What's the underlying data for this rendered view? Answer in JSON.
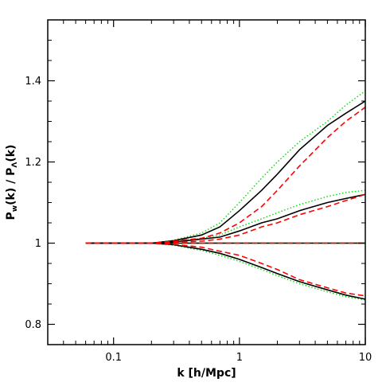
{
  "chart_data": {
    "type": "line",
    "title": "",
    "xlabel": "k [h/Mpc]",
    "ylabel": {
      "main": "P",
      "sub1": "w",
      "mid": "(k) / P",
      "sub2": "Λ",
      "end": "(k)"
    },
    "xscale": "log",
    "xlim": [
      0.03,
      10
    ],
    "ylim": [
      0.75,
      1.55
    ],
    "xticks": [
      {
        "value": 0.1,
        "label": "0.1"
      },
      {
        "value": 1,
        "label": "1"
      },
      {
        "value": 10,
        "label": "10"
      }
    ],
    "yticks": [
      {
        "value": 0.8,
        "label": "0.8"
      },
      {
        "value": 1,
        "label": "1"
      },
      {
        "value": 1.2,
        "label": "1.2"
      },
      {
        "value": 1.4,
        "label": "1.4"
      }
    ],
    "grid": false,
    "legend": "none",
    "colors": {
      "solid": "#000000",
      "dashed": "#ff0000",
      "dotted": "#00dd00"
    },
    "x": [
      0.06,
      0.1,
      0.2,
      0.3,
      0.5,
      0.7,
      1,
      1.5,
      2,
      3,
      5,
      7,
      10
    ],
    "series": [
      {
        "style": "solid",
        "values": [
          1.0,
          1.0,
          1.0,
          1.006,
          1.02,
          1.04,
          1.08,
          1.13,
          1.17,
          1.23,
          1.29,
          1.32,
          1.35
        ]
      },
      {
        "style": "dashed",
        "values": [
          1.0,
          1.0,
          1.0,
          1.005,
          1.012,
          1.025,
          1.05,
          1.09,
          1.13,
          1.19,
          1.26,
          1.3,
          1.335
        ]
      },
      {
        "style": "dotted",
        "values": [
          1.0,
          1.0,
          1.0,
          1.007,
          1.025,
          1.05,
          1.1,
          1.16,
          1.2,
          1.25,
          1.3,
          1.34,
          1.375
        ]
      },
      {
        "style": "solid",
        "values": [
          1.0,
          1.0,
          1.0,
          1.003,
          1.01,
          1.015,
          1.03,
          1.05,
          1.06,
          1.08,
          1.1,
          1.11,
          1.12
        ]
      },
      {
        "style": "dashed",
        "values": [
          1.0,
          1.0,
          1.0,
          1.002,
          1.005,
          1.01,
          1.02,
          1.04,
          1.05,
          1.07,
          1.09,
          1.105,
          1.12
        ]
      },
      {
        "style": "dotted",
        "values": [
          1.0,
          1.0,
          1.0,
          1.004,
          1.012,
          1.02,
          1.04,
          1.06,
          1.075,
          1.095,
          1.115,
          1.125,
          1.13
        ]
      },
      {
        "style": "solid",
        "values": [
          1.0,
          1.0,
          1.0,
          1.0,
          1.0,
          1.0,
          1.0,
          1.0,
          1.0,
          1.0,
          1.0,
          1.0,
          1.0
        ]
      },
      {
        "style": "dashed",
        "values": [
          1.0,
          1.0,
          1.0,
          1.0,
          1.0,
          1.0,
          1.0,
          1.0,
          1.0,
          1.0,
          1.0,
          1.0,
          1.0
        ]
      },
      {
        "style": "dotted",
        "values": [
          1.0,
          1.0,
          1.0,
          1.0,
          1.0,
          1.0,
          1.0,
          1.0,
          1.0,
          1.0,
          1.0,
          1.0,
          1.0
        ]
      },
      {
        "style": "solid",
        "values": [
          1.0,
          1.0,
          1.0,
          0.996,
          0.985,
          0.975,
          0.96,
          0.94,
          0.925,
          0.905,
          0.885,
          0.872,
          0.862
        ]
      },
      {
        "style": "dashed",
        "values": [
          1.0,
          1.0,
          1.0,
          0.997,
          0.99,
          0.98,
          0.97,
          0.95,
          0.935,
          0.91,
          0.89,
          0.877,
          0.87
        ]
      },
      {
        "style": "dotted",
        "values": [
          1.0,
          1.0,
          1.0,
          0.995,
          0.982,
          0.97,
          0.955,
          0.935,
          0.92,
          0.9,
          0.88,
          0.868,
          0.86
        ]
      }
    ]
  }
}
